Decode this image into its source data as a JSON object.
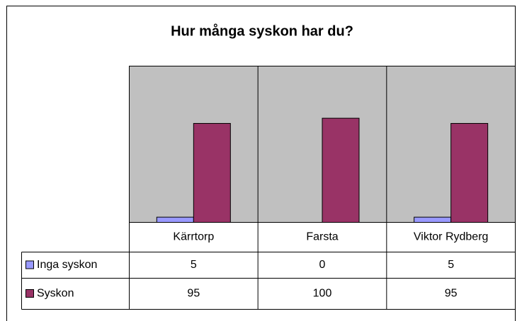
{
  "chart_data": {
    "type": "bar",
    "title": "Hur många syskon har du?",
    "categories": [
      "Kärrtorp",
      "Farsta",
      "Viktor Rydberg"
    ],
    "series": [
      {
        "name": "Inga syskon",
        "color": "#9999ff",
        "values": [
          5,
          0,
          5
        ]
      },
      {
        "name": "Syskon",
        "color": "#993366",
        "values": [
          95,
          100,
          95
        ]
      }
    ],
    "ylim": [
      0,
      150
    ]
  }
}
